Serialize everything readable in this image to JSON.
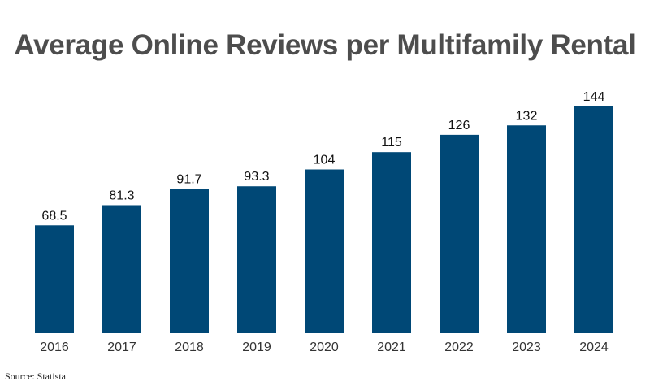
{
  "title": "Average Online Reviews per Multifamily Rental",
  "source": "Source: Statista",
  "colors": {
    "bar": "#004876",
    "title": "#4d4d4d"
  },
  "chart_data": {
    "type": "bar",
    "title": "Average Online Reviews per Multifamily Rental",
    "categories": [
      "2016",
      "2017",
      "2018",
      "2019",
      "2020",
      "2021",
      "2022",
      "2023",
      "2024"
    ],
    "values": [
      68.5,
      81.3,
      91.7,
      93.3,
      104,
      115,
      126,
      132,
      144
    ],
    "data_labels": [
      "68.5",
      "81.3",
      "91.7",
      "93.3",
      "104",
      "115",
      "126",
      "132",
      "144"
    ],
    "xlabel": "",
    "ylabel": "",
    "ylim": [
      0,
      150
    ],
    "grid": false,
    "legend": "none"
  }
}
